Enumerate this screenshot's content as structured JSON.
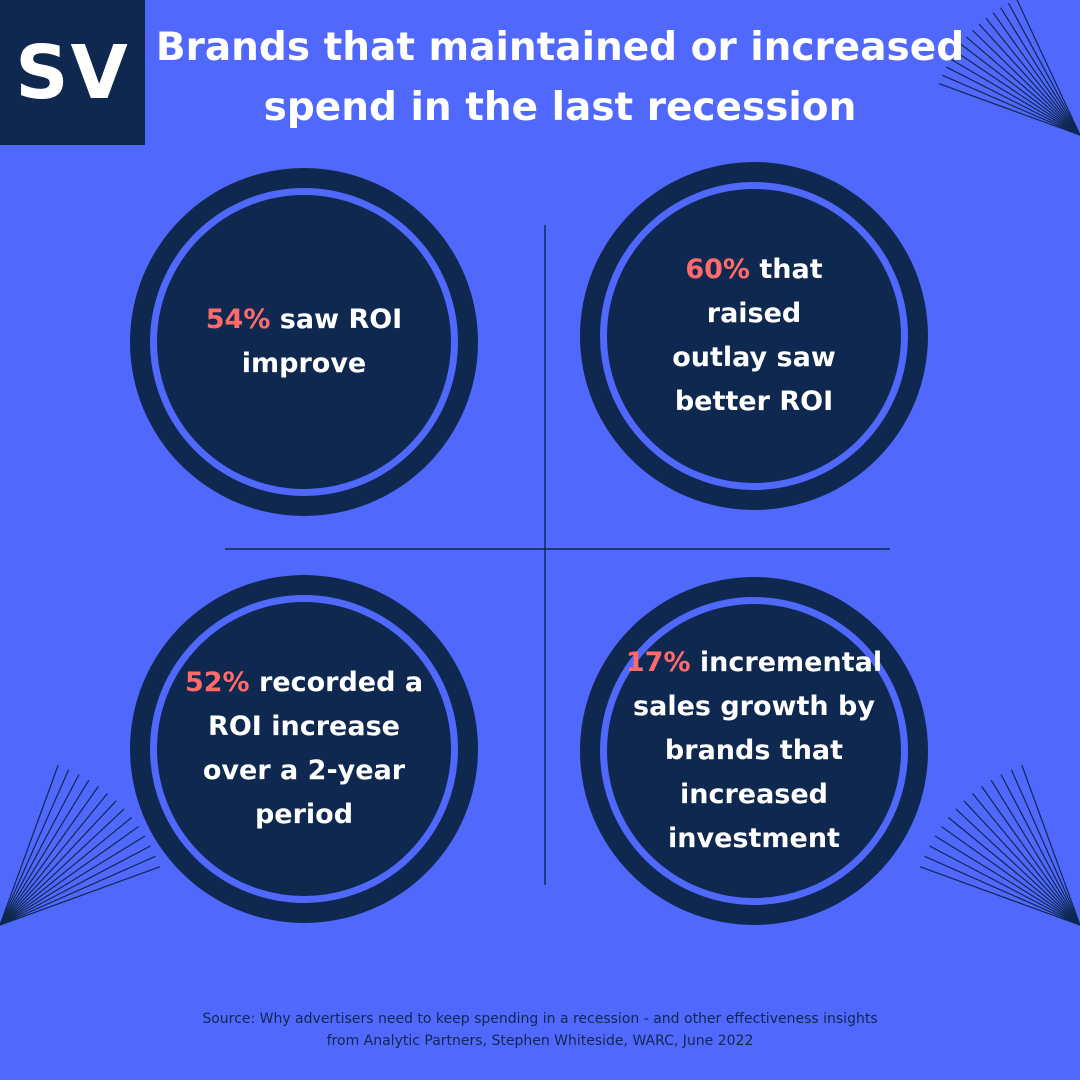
{
  "logo": {
    "text": "SV"
  },
  "title": {
    "line1": "Brands that maintained or increased",
    "line2": "spend in the last recession"
  },
  "stats": [
    {
      "highlight": "54%",
      "text": " saw ROI improve"
    },
    {
      "highlight": "60%",
      "text": " that raised outlay saw better ROI"
    },
    {
      "highlight": "52%",
      "text": " recorded a ROI increase over a 2-year period"
    },
    {
      "highlight": "17%",
      "text": " incremental sales growth by brands that increased investment"
    }
  ],
  "source": {
    "line1": "Source: Why advertisers need to keep spending in a recession - and other effectiveness insights",
    "line2": "from Analytic Partners, Stephen Whiteside, WARC, June 2022"
  },
  "colors": {
    "background": "#5068FC",
    "navy": "#0F2850",
    "highlight": "#FF6B6B",
    "text": "#FFFFFF"
  }
}
